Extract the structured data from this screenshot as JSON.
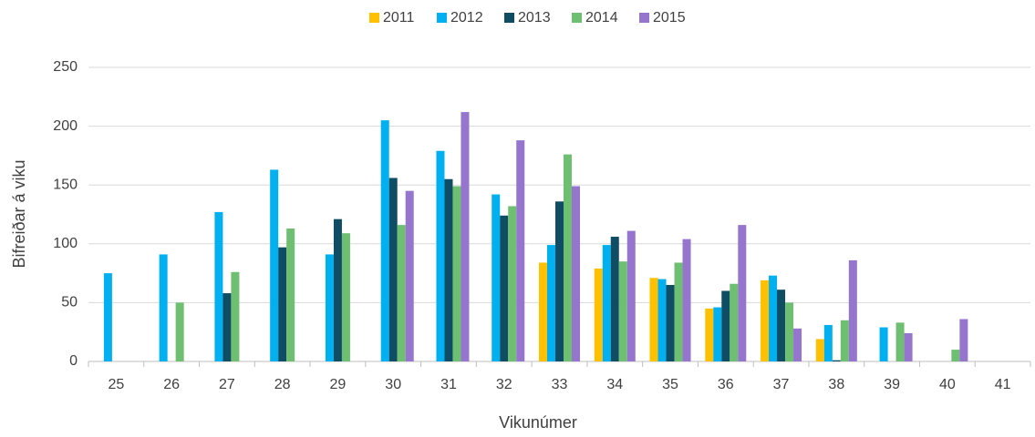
{
  "chart_data": {
    "type": "bar",
    "x_label": "Vikunúmer",
    "y_label": "Bifreiðar á viku",
    "categories": [
      "25",
      "26",
      "27",
      "28",
      "29",
      "30",
      "31",
      "32",
      "33",
      "34",
      "35",
      "36",
      "37",
      "38",
      "39",
      "40",
      "41"
    ],
    "series": [
      {
        "name": "2011",
        "color": "#ffc000",
        "values": [
          null,
          null,
          null,
          null,
          null,
          null,
          null,
          null,
          84,
          79,
          71,
          45,
          69,
          19,
          null,
          null,
          null
        ]
      },
      {
        "name": "2012",
        "color": "#00b0f0",
        "values": [
          75,
          91,
          127,
          163,
          91,
          205,
          179,
          142,
          99,
          99,
          70,
          46,
          73,
          31,
          29,
          null,
          null
        ]
      },
      {
        "name": "2013",
        "color": "#0e4d64",
        "values": [
          null,
          null,
          58,
          97,
          121,
          156,
          155,
          124,
          136,
          106,
          65,
          60,
          61,
          1,
          null,
          null,
          null
        ]
      },
      {
        "name": "2014",
        "color": "#6fbf73",
        "values": [
          null,
          50,
          76,
          113,
          109,
          116,
          149,
          132,
          176,
          85,
          84,
          66,
          50,
          35,
          33,
          10,
          null
        ]
      },
      {
        "name": "2015",
        "color": "#9575cd",
        "values": [
          null,
          null,
          null,
          null,
          null,
          145,
          212,
          188,
          149,
          111,
          104,
          116,
          28,
          86,
          24,
          36,
          null
        ]
      }
    ],
    "ylim": [
      0,
      250
    ],
    "yticks": [
      0,
      50,
      100,
      150,
      200,
      250
    ],
    "grid": true,
    "legend": "top"
  }
}
